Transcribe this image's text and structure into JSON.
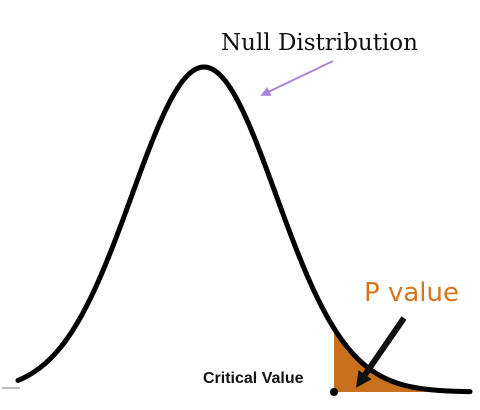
{
  "labels": {
    "null_distribution": "Null Distribution",
    "p_value": "P value",
    "critical_value": "Critical Value"
  },
  "colors": {
    "curve": "#000000",
    "shaded_region": "#c8701e",
    "p_value_text": "#d9741e",
    "arrow_null": "#a785d9",
    "arrow_p": "#111111"
  }
}
